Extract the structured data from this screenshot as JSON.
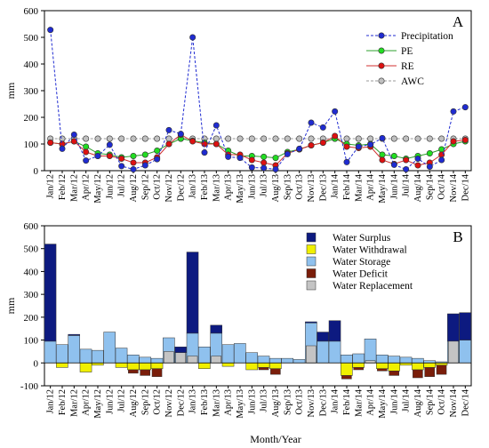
{
  "chart_data": [
    {
      "type": "line",
      "panel_label": "A",
      "ylabel": "mm",
      "ylim": [
        0,
        600
      ],
      "yticks": [
        0,
        100,
        200,
        300,
        400,
        500,
        600
      ],
      "grid": false,
      "legend_position": "top-right",
      "categories": [
        "Jan/12",
        "Feb/12",
        "Mar/12",
        "Apr/12",
        "May/12",
        "Jun/12",
        "Jul/12",
        "Aug/12",
        "Sep/12",
        "Oct/12",
        "Nov/12",
        "Dec/12",
        "Jan/13",
        "Feb/13",
        "Mar/13",
        "Apr/13",
        "May/13",
        "Jun/13",
        "Jul/13",
        "Aug/13",
        "Sep/13",
        "Oct/13",
        "Nov/13",
        "Dec/13",
        "Jan/14",
        "Feb/14",
        "Mar/14",
        "Apr/14",
        "May/14",
        "Jun/14",
        "Jul/14",
        "Aug/14",
        "Sep/14",
        "Oct/14",
        "Nov/14",
        "Dec/14"
      ],
      "series": [
        {
          "name": "Precipitation",
          "color": "#1f2bd1",
          "marker": "#1f2bd1",
          "dashed": true,
          "values": [
            528,
            82,
            135,
            38,
            55,
            97,
            17,
            5,
            20,
            43,
            152,
            138,
            500,
            68,
            170,
            52,
            48,
            12,
            10,
            5,
            62,
            82,
            180,
            162,
            222,
            32,
            90,
            98,
            122,
            22,
            5,
            45,
            15,
            40,
            222,
            238
          ]
        },
        {
          "name": "PE",
          "color": "#2ca02c",
          "marker": "#22dd22",
          "dashed": false,
          "values": [
            105,
            100,
            110,
            90,
            65,
            60,
            50,
            55,
            60,
            75,
            100,
            120,
            112,
            105,
            100,
            75,
            55,
            55,
            52,
            48,
            70,
            80,
            95,
            105,
            120,
            100,
            95,
            100,
            60,
            55,
            45,
            55,
            65,
            80,
            100,
            110
          ]
        },
        {
          "name": "RE",
          "color": "#d03030",
          "marker": "#dd1111",
          "dashed": false,
          "values": [
            105,
            100,
            110,
            70,
            55,
            55,
            45,
            30,
            30,
            50,
            100,
            135,
            110,
            100,
            100,
            60,
            60,
            40,
            30,
            20,
            65,
            80,
            95,
            105,
            130,
            90,
            85,
            90,
            40,
            25,
            40,
            20,
            30,
            60,
            110,
            115
          ]
        },
        {
          "name": "AWC",
          "color": "#999999",
          "marker": "#c0c0c0",
          "dashed": true,
          "values": [
            120,
            120,
            120,
            120,
            120,
            120,
            120,
            120,
            120,
            120,
            120,
            120,
            120,
            120,
            120,
            120,
            120,
            120,
            120,
            120,
            120,
            120,
            120,
            120,
            120,
            120,
            120,
            120,
            120,
            120,
            120,
            120,
            120,
            120,
            120,
            120
          ]
        }
      ]
    },
    {
      "type": "bar",
      "panel_label": "B",
      "ylabel": "mm",
      "xlabel": "Month/Year",
      "ylim": [
        -100,
        600
      ],
      "yticks": [
        -100,
        0,
        100,
        200,
        300,
        400,
        500,
        600
      ],
      "grid": false,
      "legend_position": "top-right",
      "categories": [
        "Jan/12",
        "Feb/12",
        "Mar/12",
        "Apr/12",
        "May/12",
        "Jun/12",
        "Jul/12",
        "Aug/12",
        "Sep/12",
        "Oct/12",
        "Nov/12",
        "Dec/12",
        "Jan/13",
        "Feb/13",
        "Mar/13",
        "Apr/13",
        "May/13",
        "Jun/13",
        "Jul/13",
        "Aug/13",
        "Sep/13",
        "Oct/13",
        "Nov/13",
        "Dec/13",
        "Jan/14",
        "Feb/14",
        "Mar/14",
        "Apr/14",
        "May/14",
        "Jun/14",
        "Jul/14",
        "Aug/14",
        "Sep/14",
        "Oct/14",
        "Nov/14",
        "Dec/14"
      ],
      "series": [
        {
          "name": "Water Surplus",
          "color": "#0d1a80",
          "values": [
            425,
            0,
            5,
            0,
            0,
            0,
            0,
            0,
            0,
            0,
            0,
            25,
            355,
            0,
            35,
            0,
            0,
            0,
            0,
            0,
            0,
            0,
            5,
            40,
            90,
            0,
            0,
            0,
            0,
            0,
            0,
            0,
            0,
            0,
            120,
            120
          ]
        },
        {
          "name": "Water Withdrawal",
          "color": "#f0f000",
          "values": [
            0,
            -20,
            0,
            -40,
            -10,
            0,
            -20,
            -30,
            -30,
            -25,
            0,
            0,
            0,
            -25,
            0,
            -15,
            0,
            -30,
            -20,
            -25,
            0,
            0,
            0,
            0,
            0,
            -55,
            -20,
            0,
            -25,
            -35,
            -10,
            -30,
            -20,
            -10,
            0,
            0
          ]
        },
        {
          "name": "Water Storage",
          "color": "#8fc1ee",
          "values": [
            95,
            80,
            120,
            60,
            55,
            135,
            65,
            35,
            25,
            20,
            110,
            45,
            130,
            70,
            130,
            80,
            85,
            45,
            30,
            20,
            20,
            15,
            175,
            95,
            95,
            35,
            40,
            105,
            35,
            30,
            25,
            20,
            10,
            5,
            95,
            100
          ]
        },
        {
          "name": "Water Deficit",
          "color": "#7a1d0a",
          "values": [
            0,
            0,
            0,
            0,
            0,
            0,
            0,
            -15,
            -25,
            -35,
            0,
            0,
            0,
            0,
            0,
            0,
            0,
            0,
            -10,
            -25,
            0,
            0,
            0,
            0,
            0,
            -15,
            -10,
            0,
            -10,
            -20,
            0,
            -35,
            -40,
            -40,
            0,
            0
          ]
        },
        {
          "name": "Water Replacement",
          "color": "#c4c4c4",
          "values": [
            0,
            0,
            0,
            0,
            0,
            0,
            0,
            0,
            0,
            0,
            50,
            45,
            30,
            0,
            30,
            0,
            0,
            0,
            0,
            0,
            0,
            0,
            75,
            0,
            0,
            0,
            0,
            10,
            0,
            0,
            0,
            0,
            0,
            0,
            95,
            0
          ]
        }
      ]
    }
  ]
}
